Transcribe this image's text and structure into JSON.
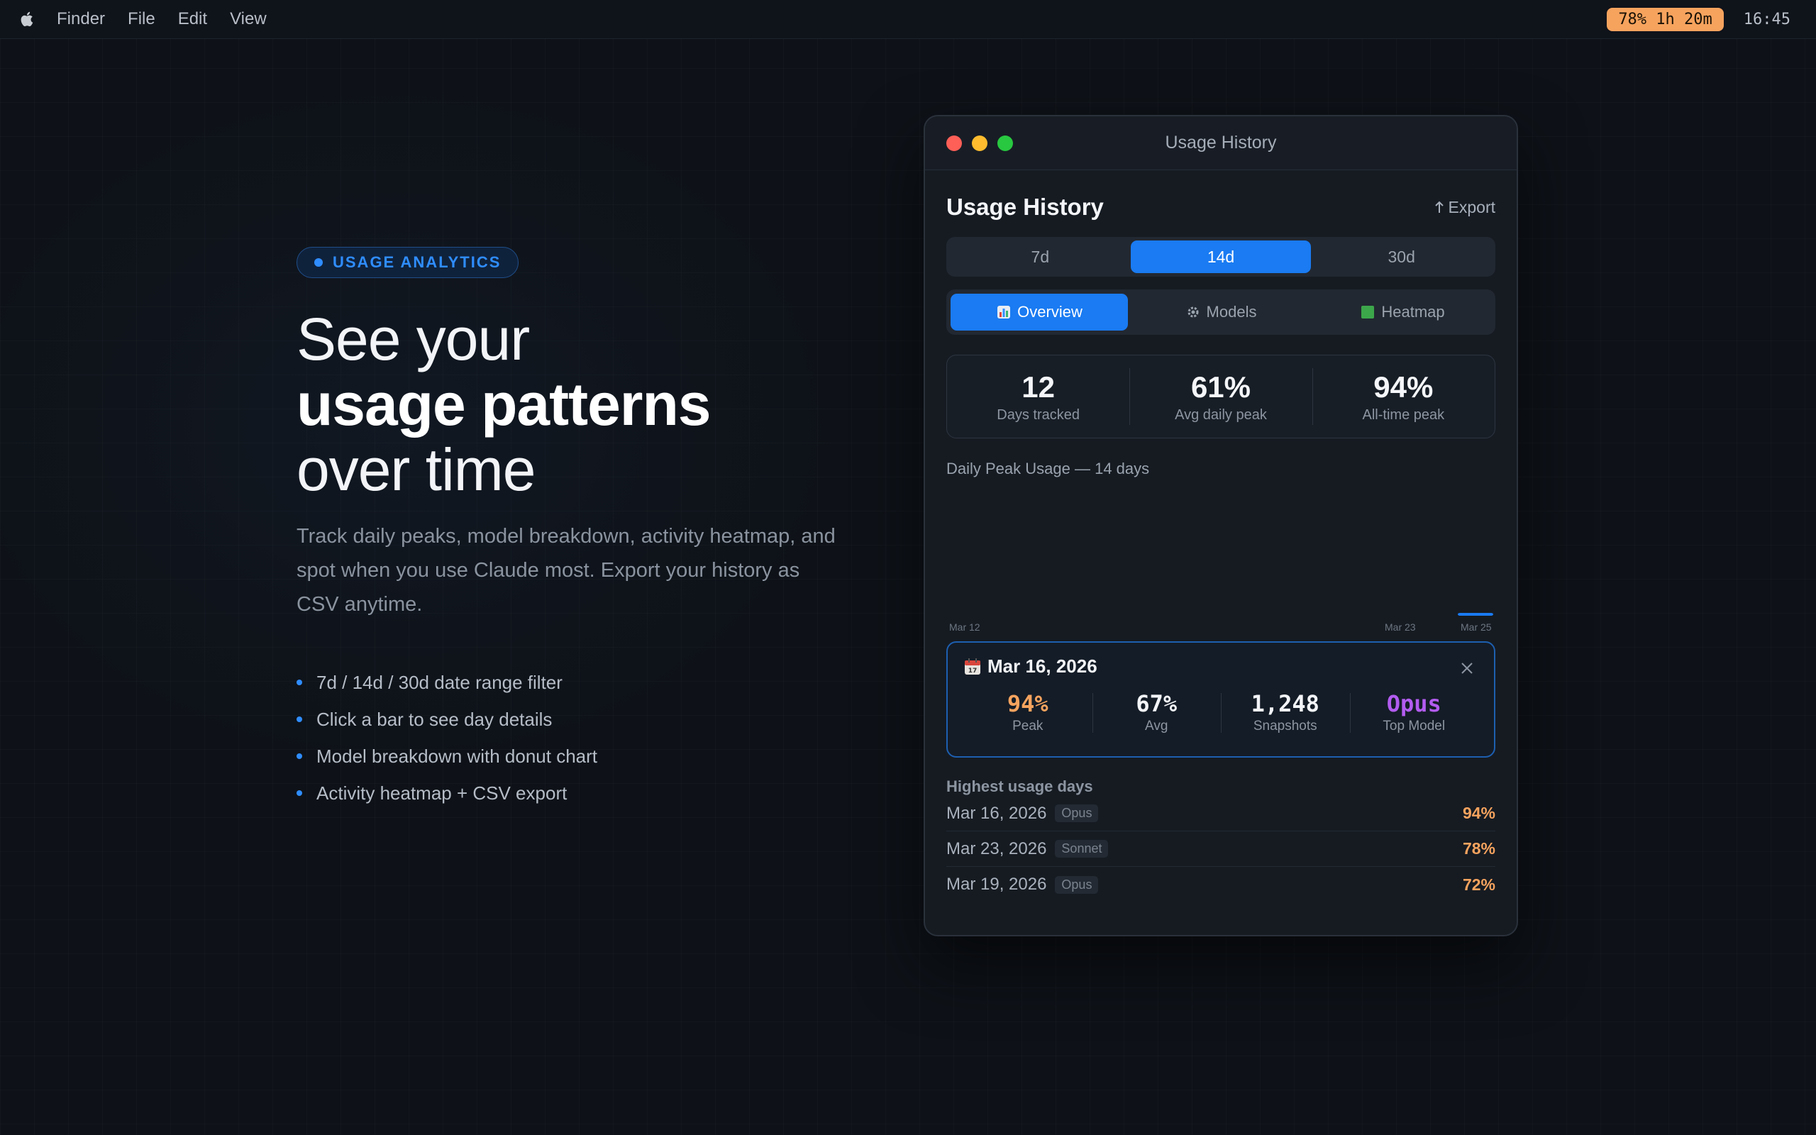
{
  "menubar": {
    "menus": [
      "Finder",
      "File",
      "Edit",
      "View"
    ],
    "status_pill": "78% 1h 20m",
    "clock": "16:45"
  },
  "hero": {
    "badge": "USAGE ANALYTICS",
    "headline_line1": "See your",
    "headline_line2": "usage patterns",
    "headline_line3": "over time",
    "lede": "Track daily peaks, model breakdown, activity heatmap, and spot when you use Claude most. Export your history as CSV anytime.",
    "features": [
      "7d / 14d / 30d date range filter",
      "Click a bar to see day details",
      "Model breakdown with donut chart",
      "Activity heatmap + CSV export"
    ]
  },
  "window": {
    "title": "Usage History",
    "header_title": "Usage History",
    "export_label": "Export",
    "ranges": [
      "7d",
      "14d",
      "30d"
    ],
    "selected_range": "14d",
    "tabs": [
      {
        "label": "Overview",
        "icon": "bar-chart-icon"
      },
      {
        "label": "Models",
        "icon": "gear-icon"
      },
      {
        "label": "Heatmap",
        "icon": "green-square-icon"
      }
    ],
    "selected_tab": "Overview",
    "stats": [
      {
        "value": "12",
        "label": "Days tracked"
      },
      {
        "value": "61%",
        "label": "Avg daily peak"
      },
      {
        "value": "94%",
        "label": "All-time peak"
      }
    ],
    "chart_title": "Daily Peak Usage — 14 days",
    "detail": {
      "date": "Mar 16, 2026",
      "items": [
        {
          "value": "94%",
          "label": "Peak",
          "color": "#f6a35e"
        },
        {
          "value": "67%",
          "label": "Avg",
          "color": "#f2f4f7"
        },
        {
          "value": "1,248",
          "label": "Snapshots",
          "color": "#f2f4f7"
        },
        {
          "value": "Opus",
          "label": "Top Model",
          "color": "#b35cf0"
        }
      ]
    },
    "highest_title": "Highest usage days",
    "highest": [
      {
        "date": "Mar 16, 2026",
        "model": "Opus",
        "pct": "94%"
      },
      {
        "date": "Mar 23, 2026",
        "model": "Sonnet",
        "pct": "78%"
      },
      {
        "date": "Mar 19, 2026",
        "model": "Opus",
        "pct": "72%"
      }
    ]
  },
  "colors": {
    "accent": "#1a7bf2",
    "peak": "#f6a35e",
    "opus": "#b35cf0"
  },
  "chart_data": {
    "type": "bar",
    "title": "Daily Peak Usage — 14 days",
    "tick_labels": [
      "Mar 12",
      "Mar 23",
      "Mar 25"
    ],
    "visible_bars": [
      {
        "category": "Mar 25",
        "value": 2
      }
    ],
    "ylim": [
      0,
      100
    ]
  }
}
